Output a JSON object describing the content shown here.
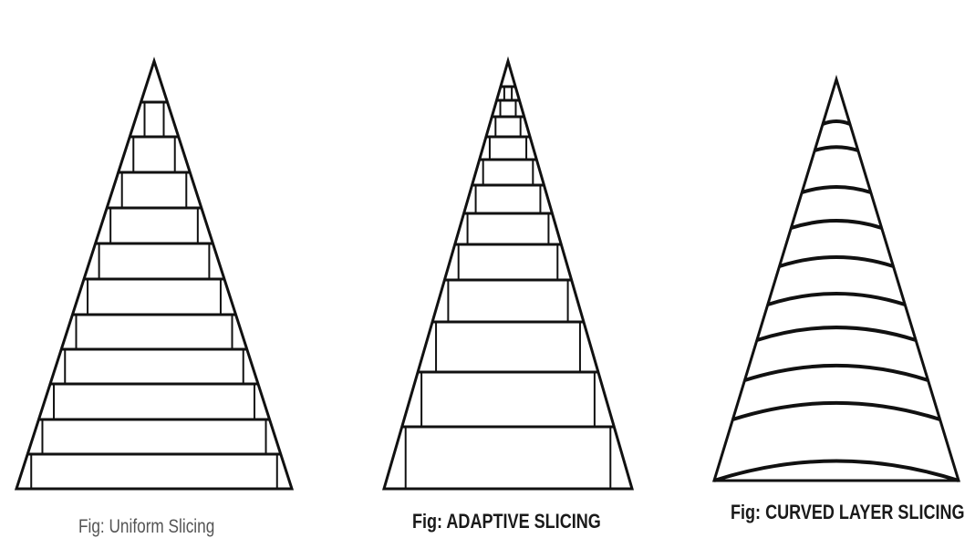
{
  "figures": [
    {
      "id": "uniform",
      "caption": "Fig: Uniform Slicing",
      "layer_count": 12,
      "slicing": "uniform"
    },
    {
      "id": "adaptive",
      "caption": "Fig: ADAPTIVE SLICING",
      "layer_count": 14,
      "slicing": "adaptive"
    },
    {
      "id": "curved",
      "caption": "Fig: CURVED LAYER SLICING",
      "layer_count": 12,
      "slicing": "curved"
    }
  ],
  "colors": {
    "line": "#111111",
    "caption_uniform": "#555555",
    "caption_other": "#1a1a1a",
    "background": "#ffffff"
  }
}
